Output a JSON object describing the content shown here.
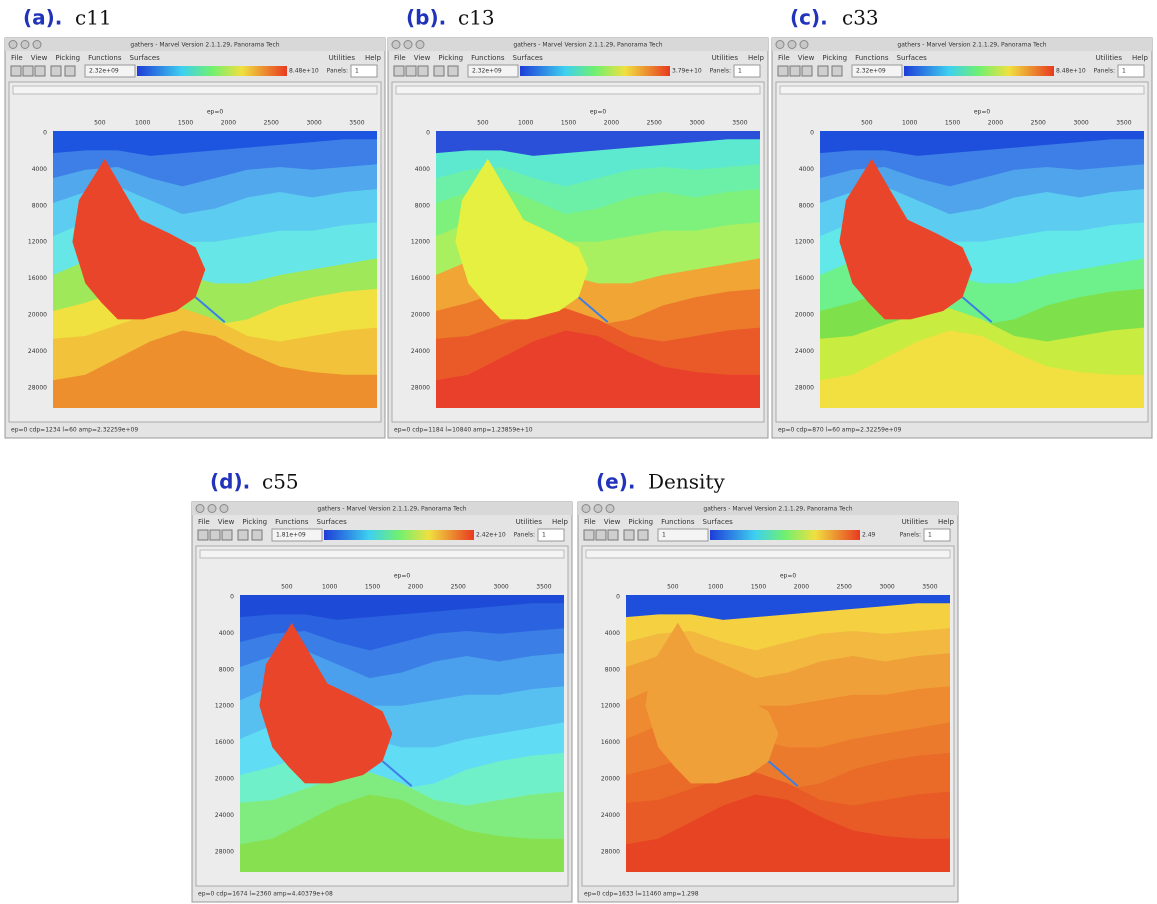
{
  "window": {
    "title": "gathers - Marvel Version 2.1.1.29, Panorama Tech",
    "menus": [
      "File",
      "View",
      "Picking",
      "Functions",
      "Surfaces"
    ],
    "menus_right": [
      "Utilities",
      "Help"
    ],
    "panels_label": "Panels:",
    "panels_value": "1",
    "x_axis_label": "ep=0",
    "x_ticks": [
      500,
      1000,
      1500,
      2000,
      2500,
      3000,
      3500
    ],
    "y_ticks": [
      0,
      4000,
      8000,
      12000,
      16000,
      20000,
      24000,
      28000
    ]
  },
  "panels": [
    {
      "letter": "(a).",
      "name": "c11",
      "color_min": "2.32e+09",
      "color_max": "8.48e+10",
      "status": "ep=0 cdp=1234 l=60 amp=2.32259e+09",
      "water": "#1e55e0",
      "layers": [
        "#3d7fe6",
        "#52a8ec",
        "#5ccdf0",
        "#66e6e6",
        "#9ee85a",
        "#f0e040",
        "#f2c23a",
        "#ec8f2c"
      ],
      "salt": "#e8452a"
    },
    {
      "letter": "(b).",
      "name": "c13",
      "color_min": "2.32e+09",
      "color_max": "3.79e+10",
      "status": "ep=0 cdp=1184 l=10840 amp=1.23859e+10",
      "water": "#2a4fd8",
      "layers": [
        "#5de8d0",
        "#6cf0a8",
        "#7ef07c",
        "#a8f060",
        "#f0a535",
        "#ec7a2a",
        "#ea5a28",
        "#e8402a"
      ],
      "salt": "#e6f040"
    },
    {
      "letter": "(c).",
      "name": "c33",
      "color_min": "2.32e+09",
      "color_max": "8.48e+10",
      "status": "ep=0 cdp=870 l=60 amp=2.32259e+09",
      "water": "#1e4fdc",
      "layers": [
        "#3d7fe6",
        "#4fa4ec",
        "#5ccdf0",
        "#62e8e8",
        "#6ef08a",
        "#7ee04a",
        "#c8ec40",
        "#f2e040"
      ],
      "salt": "#e8452a"
    },
    {
      "letter": "(d).",
      "name": "c55",
      "color_min": "1.81e+09",
      "color_max": "2.42e+10",
      "status": "ep=0 cdp=1674 l=2360 amp=4.40379e+08",
      "water": "#1e4ad8",
      "layers": [
        "#2a62e0",
        "#3a7ee6",
        "#4aa0ec",
        "#58c0f0",
        "#60dcf4",
        "#70f0c8",
        "#80ec80",
        "#86e050"
      ],
      "salt": "#e8452a"
    },
    {
      "letter": "(e).",
      "name": "Density",
      "color_min": "1",
      "color_max": "2.49",
      "status": "ep=0 cdp=1633 l=11460 amp=1.298",
      "water": "#1e4fdc",
      "layers": [
        "#f5d040",
        "#f2b840",
        "#f0a038",
        "#ee8a30",
        "#ec7a2c",
        "#ea6a28",
        "#e85a26",
        "#e64422"
      ],
      "salt": "#f0a038"
    }
  ]
}
